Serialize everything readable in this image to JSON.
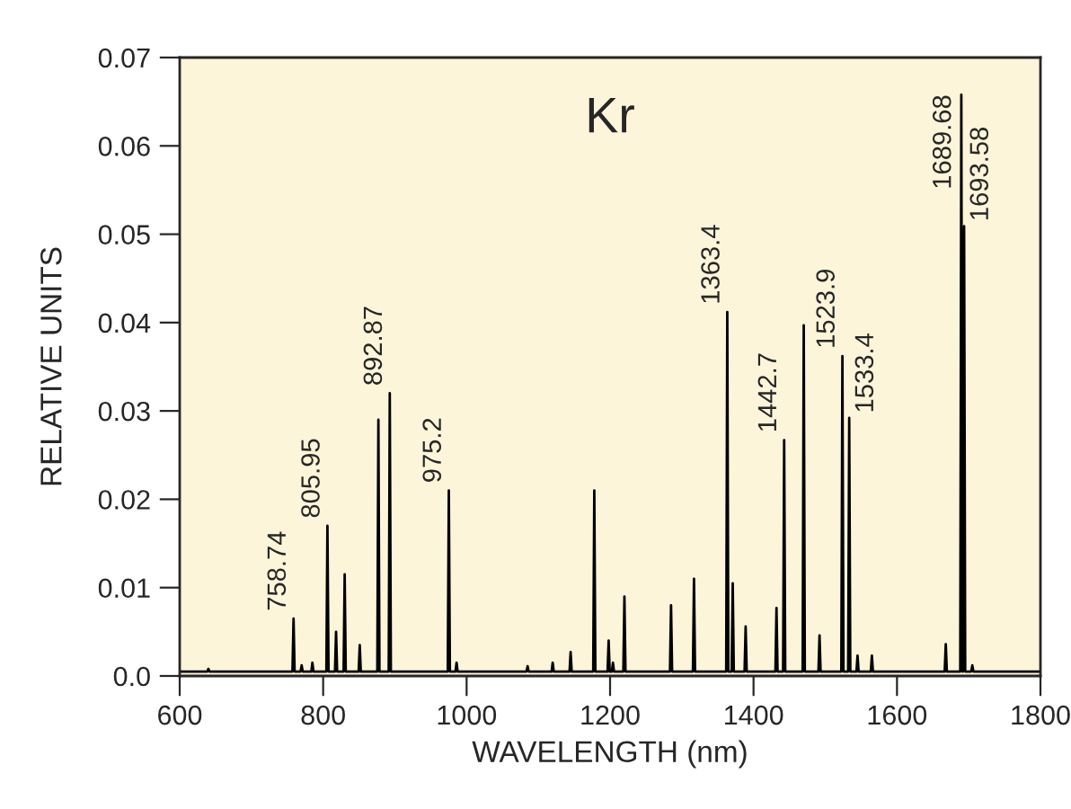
{
  "chart_data": {
    "type": "line",
    "title": "Kr",
    "xlabel": "WAVELENGTH (nm)",
    "ylabel": "RELATIVE UNITS",
    "series": [
      {
        "color": "#000000",
        "x": [
          600,
          638.5,
          640,
          641.5,
          757.2,
          758.74,
          760.2,
          768.5,
          770,
          771.5,
          783.5,
          785,
          786.5,
          804.5,
          805.95,
          807.5,
          816.5,
          818,
          819.5,
          828.5,
          830,
          831.5,
          849.5,
          851,
          852.5,
          875.5,
          877,
          878.5,
          891.4,
          892.87,
          894.4,
          973.7,
          975.2,
          976.7,
          984.5,
          986,
          987.5,
          1083.5,
          1085,
          1086.5,
          1118.5,
          1120,
          1121.5,
          1143.5,
          1145,
          1146.5,
          1176.5,
          1178,
          1179.5,
          1196.5,
          1198,
          1199.5,
          1202.5,
          1204,
          1205.5,
          1218.5,
          1220,
          1221.5,
          1283.5,
          1285,
          1286.5,
          1315.5,
          1317,
          1318.5,
          1361.9,
          1363.4,
          1364.9,
          1369.5,
          1371,
          1372.5,
          1387.5,
          1389,
          1390.5,
          1430.5,
          1432,
          1433.5,
          1441.2,
          1442.7,
          1444.2,
          1468.5,
          1470,
          1471.5,
          1490.5,
          1492,
          1493.5,
          1522.4,
          1523.9,
          1525.4,
          1531.9,
          1533.4,
          1534.9,
          1543.5,
          1545,
          1546.5,
          1563.5,
          1565,
          1566.5,
          1666.5,
          1668,
          1669.5,
          1688.2,
          1689.68,
          1691.2,
          1692.1,
          1693.58,
          1695.1,
          1703.5,
          1705,
          1706.5,
          1800
        ],
        "values": [
          0.0005,
          0.0005,
          0.0008,
          0.0005,
          0.0005,
          0.0065,
          0.0005,
          0.0005,
          0.0012,
          0.0005,
          0.0005,
          0.0015,
          0.0005,
          0.0005,
          0.017,
          0.0005,
          0.0005,
          0.005,
          0.0005,
          0.0005,
          0.0115,
          0.0005,
          0.0005,
          0.0035,
          0.0005,
          0.0005,
          0.029,
          0.0005,
          0.0005,
          0.032,
          0.0005,
          0.0005,
          0.021,
          0.0005,
          0.0005,
          0.0015,
          0.0005,
          0.0005,
          0.0011,
          0.0005,
          0.0005,
          0.0015,
          0.0005,
          0.0005,
          0.0027,
          0.0005,
          0.0005,
          0.021,
          0.0005,
          0.0005,
          0.004,
          0.0005,
          0.0005,
          0.0015,
          0.0005,
          0.0005,
          0.009,
          0.0005,
          0.0005,
          0.008,
          0.0005,
          0.0005,
          0.011,
          0.0005,
          0.0005,
          0.0412,
          0.0005,
          0.0005,
          0.0105,
          0.0005,
          0.0005,
          0.0056,
          0.0005,
          0.0005,
          0.0077,
          0.0005,
          0.0005,
          0.0267,
          0.0005,
          0.0005,
          0.0397,
          0.0005,
          0.0005,
          0.0046,
          0.0005,
          0.0005,
          0.0362,
          0.0005,
          0.0005,
          0.0292,
          0.0005,
          0.0005,
          0.0023,
          0.0005,
          0.0005,
          0.0023,
          0.0005,
          0.0005,
          0.0036,
          0.0005,
          0.0005,
          0.0658,
          0.0005,
          0.0005,
          0.0509,
          0.0005,
          0.0005,
          0.0012,
          0.0005,
          0.0005
        ]
      }
    ],
    "annotations": [
      {
        "text": "758.74",
        "x": 758.74,
        "y": 0.0065
      },
      {
        "text": "805.95",
        "x": 805.95,
        "y": 0.017
      },
      {
        "text": "892.87",
        "x": 892.87,
        "y": 0.032
      },
      {
        "text": "975.2",
        "x": 975.2,
        "y": 0.021
      },
      {
        "text": "1363.4",
        "x": 1363.4,
        "y": 0.0412
      },
      {
        "text": "1442.7",
        "x": 1442.7,
        "y": 0.0267
      },
      {
        "text": "1523.9",
        "x": 1523.9,
        "y": 0.0362
      },
      {
        "text": "1533.4",
        "x": 1533.4,
        "y": 0.0292
      },
      {
        "text": "1689.68",
        "x": 1689.68,
        "y": 0.0658
      },
      {
        "text": "1693.58",
        "x": 1693.58,
        "y": 0.0509
      }
    ],
    "xlim": [
      600,
      1800
    ],
    "xticks": [
      600,
      800,
      1000,
      1200,
      1400,
      1600,
      1800
    ],
    "ylim": [
      0,
      0.07
    ],
    "yticks": [
      {
        "value": 0,
        "label": "0.0"
      },
      0.01,
      0.02,
      0.03,
      0.04,
      0.05,
      0.06,
      0.07
    ],
    "grid": false
  }
}
